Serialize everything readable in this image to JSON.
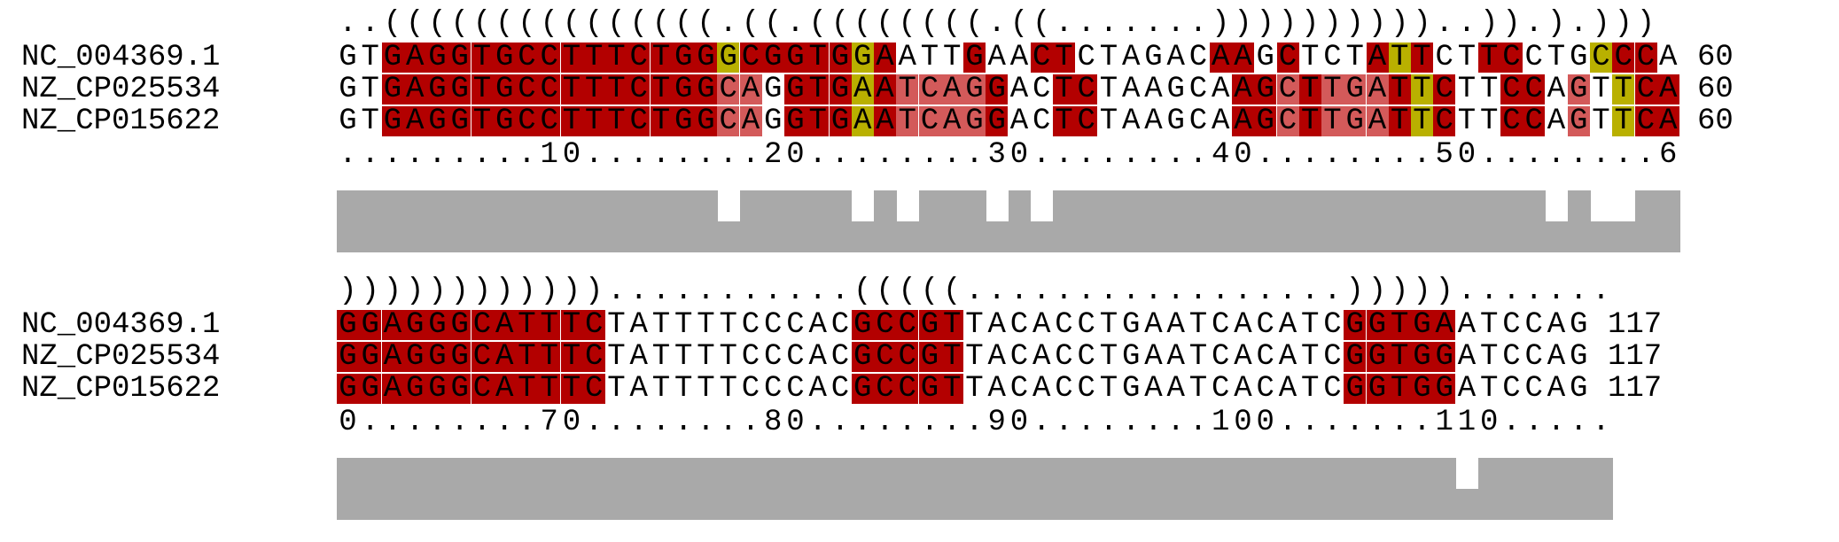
{
  "colors": {
    "paired_consistent": "#b30000",
    "paired_compensatory": "#d35a5a",
    "paired_mismatch": "#b9b000",
    "conservation": "#a9a9a9"
  },
  "blocks": [
    {
      "structure": "..(((((((((((((((.((.((((((((.((.......))))))))))..)).).)))",
      "sequences": [
        {
          "name": "NC_004369.1",
          "seq": "GTGAGGTGCCTTTCTGGGCGGTGGAATTGAACTCTAGACAAGCTCTATTCTTCCTGCCCA",
          "end": "60",
          "colors": "..AAAAAAAAAAAAAAAMAAAAAMA...A..AA......AA.A...AMA..AA...MAA"
        },
        {
          "name": "NZ_CP025534",
          "seq": "GTGAGGTGCCTTTCTGGCAGGTGAATCAGGACTCTAAGCAAGCTTGATTCTTCCAGTTCA",
          "end": "60",
          "colors": "..AAAAAAAAAAAAAAABB.AAAMABBBBA..AA......AABABBBAMA..AA.B.MAA"
        },
        {
          "name": "NZ_CP015622",
          "seq": "GTGAGGTGCCTTTCTGGCAGGTGAATCAGGACTCTAAGCAAGCTTGATTCTTCCAGTTCA",
          "end": "60",
          "colors": "..AAAAAAAAAAAAAAABB.AAAMABBBBA..AA......AABABBBAMA..AA.B.MAA"
        }
      ],
      "ruler": ".........10........20........30........40........50........6",
      "conservation": [
        1,
        1,
        1,
        1,
        1,
        1,
        1,
        1,
        1,
        1,
        1,
        1,
        1,
        1,
        1,
        1,
        1,
        0,
        1,
        1,
        1,
        1,
        1,
        0,
        1,
        0,
        1,
        1,
        1,
        0,
        1,
        0,
        1,
        1,
        1,
        1,
        1,
        1,
        1,
        1,
        1,
        1,
        1,
        1,
        1,
        1,
        1,
        1,
        1,
        1,
        1,
        1,
        1,
        1,
        0,
        1,
        0,
        0,
        1,
        1
      ]
    },
    {
      "structure": "))))))))))))...........(((((.................))))).......",
      "sequences": [
        {
          "name": "NC_004369.1",
          "seq": "GGAGGGCATTTCTATTTTCCCACGCCGTTACACCTGAATCACATCGGTGAATCCAG",
          "end": "117",
          "colors": "AAAAAAAAAAAA...........AAAAA.................AAAAA......."
        },
        {
          "name": "NZ_CP025534",
          "seq": "GGAGGGCATTTCTATTTTCCCACGCCGTTACACCTGAATCACATCGGTGGATCCAG",
          "end": "117",
          "colors": "AAAAAAAAAAAA...........AAAAA.................AAAAA......."
        },
        {
          "name": "NZ_CP015622",
          "seq": "GGAGGGCATTTCTATTTTCCCACGCCGTTACACCTGAATCACATCGGTGGATCCAG",
          "end": "117",
          "colors": "AAAAAAAAAAAA...........AAAAA.................AAAAA......."
        }
      ],
      "ruler": "0........70........80........90........100.......110.....",
      "conservation": [
        1,
        1,
        1,
        1,
        1,
        1,
        1,
        1,
        1,
        1,
        1,
        1,
        1,
        1,
        1,
        1,
        1,
        1,
        1,
        1,
        1,
        1,
        1,
        1,
        1,
        1,
        1,
        1,
        1,
        1,
        1,
        1,
        1,
        1,
        1,
        1,
        1,
        1,
        1,
        1,
        1,
        1,
        1,
        1,
        1,
        1,
        1,
        1,
        1,
        1,
        0,
        1,
        1,
        1,
        1,
        1,
        1
      ]
    }
  ]
}
